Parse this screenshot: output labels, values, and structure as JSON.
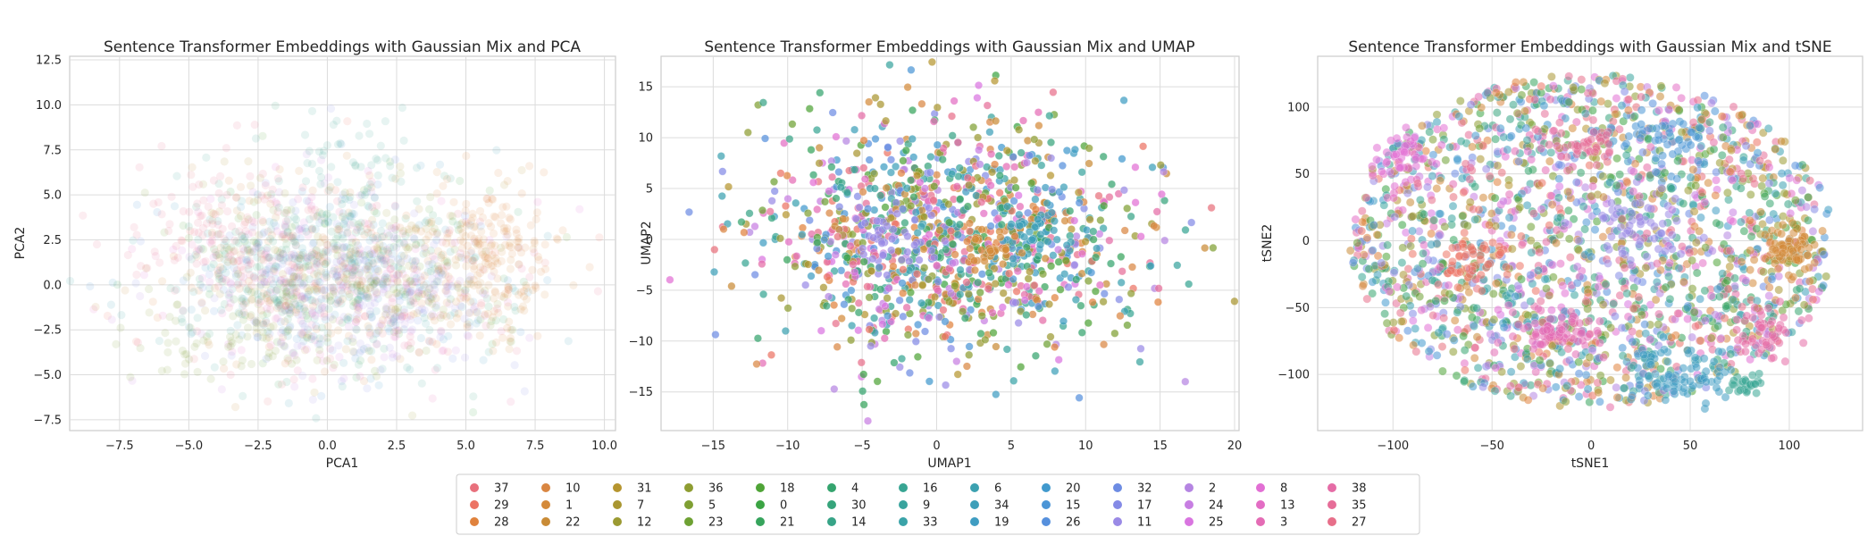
{
  "chart_data": [
    {
      "type": "scatter",
      "title": "Sentence Transformer Embeddings with Gaussian Mix and PCA",
      "xlabel": "PCA1",
      "ylabel": "PCA2",
      "xlim": [
        -9.3,
        10.4
      ],
      "ylim": [
        -8.1,
        12.7
      ],
      "xticks": [
        -7.5,
        -5.0,
        -2.5,
        0.0,
        2.5,
        5.0,
        7.5,
        10.0
      ],
      "yticks": [
        -7.5,
        -5.0,
        -2.5,
        0.0,
        2.5,
        5.0,
        7.5,
        10.0,
        12.5
      ],
      "xtick_labels": [
        "−7.5",
        "−5.0",
        "−2.5",
        "0.0",
        "2.5",
        "5.0",
        "7.5",
        "10.0"
      ],
      "ytick_labels": [
        "−7.5",
        "−5.0",
        "−2.5",
        "0.0",
        "2.5",
        "5.0",
        "7.5",
        "10.0",
        "12.5"
      ],
      "grid": true,
      "point_alpha": 0.12,
      "cloud": {
        "cx": 0.2,
        "cy": 0.6,
        "sx": 3.2,
        "sy": 2.6,
        "count": 1500
      },
      "dense_regions": [
        {
          "cluster": "28",
          "cx": 6.0,
          "cy": 2.0,
          "sx": 1.3,
          "sy": 2.2,
          "count": 110
        },
        {
          "cluster": "1",
          "cx": 5.5,
          "cy": 0.5,
          "sx": 1.2,
          "sy": 1.8,
          "count": 90
        },
        {
          "cluster": "27",
          "cx": -4.0,
          "cy": 3.0,
          "sx": 1.8,
          "sy": 2.0,
          "count": 100
        },
        {
          "cluster": "16",
          "cx": 1.0,
          "cy": 5.5,
          "sx": 1.5,
          "sy": 2.2,
          "count": 70
        },
        {
          "cluster": "11",
          "cx": 2.0,
          "cy": -1.0,
          "sx": 1.8,
          "sy": 1.6,
          "count": 70
        },
        {
          "cluster": "5",
          "cx": -3.0,
          "cy": -3.5,
          "sx": 1.8,
          "sy": 1.0,
          "count": 60
        }
      ]
    },
    {
      "type": "scatter",
      "title": "Sentence Transformer Embeddings with Gaussian Mix and UMAP",
      "xlabel": "UMAP1",
      "ylabel": "UMAP2",
      "xlim": [
        -18.5,
        20.3
      ],
      "ylim": [
        -18.8,
        18.0
      ],
      "xticks": [
        -15,
        -10,
        -5,
        0,
        5,
        10,
        15,
        20
      ],
      "yticks": [
        -15,
        -10,
        -5,
        0,
        5,
        10,
        15
      ],
      "xtick_labels": [
        "−15",
        "−10",
        "−5",
        "0",
        "5",
        "10",
        "15",
        "20"
      ],
      "ytick_labels": [
        "−15",
        "−10",
        "−5",
        "0",
        "5",
        "10",
        "15"
      ],
      "grid": true,
      "point_alpha": 0.72,
      "cloud": {
        "cx": 1.0,
        "cy": 0.0,
        "sx": 6.5,
        "sy": 6.0,
        "count": 1250
      },
      "dense_regions": [
        {
          "cluster": "34",
          "cx": 6.5,
          "cy": 0.5,
          "sx": 1.0,
          "sy": 1.2,
          "count": 40
        },
        {
          "cluster": "11",
          "cx": -3.0,
          "cy": 0.0,
          "sx": 1.5,
          "sy": 1.5,
          "count": 40
        },
        {
          "cluster": "1",
          "cx": 3.5,
          "cy": -1.0,
          "sx": 1.0,
          "sy": 1.0,
          "count": 30
        }
      ]
    },
    {
      "type": "scatter",
      "title": "Sentence Transformer Embeddings with Gaussian Mix and tSNE",
      "xlabel": "tSNE1",
      "ylabel": "tSNE2",
      "xlim": [
        -138,
        137
      ],
      "ylim": [
        -142,
        138
      ],
      "xticks": [
        -100,
        -50,
        0,
        50,
        100
      ],
      "yticks": [
        -100,
        -50,
        0,
        50,
        100
      ],
      "xtick_labels": [
        "−100",
        "−50",
        "0",
        "50",
        "100"
      ],
      "ytick_labels": [
        "−100",
        "−50",
        "0",
        "50",
        "100"
      ],
      "grid": true,
      "point_alpha": 0.55,
      "cloud": {
        "cx": 0,
        "cy": 0,
        "rx": 122,
        "ry": 125,
        "count": 2000
      },
      "dense_regions": [
        {
          "cluster": "1",
          "cx": 100,
          "cy": -8,
          "sx": 9,
          "sy": 9,
          "count": 70
        },
        {
          "cluster": "3",
          "cx": -20,
          "cy": -70,
          "sx": 12,
          "sy": 9,
          "count": 70
        },
        {
          "cluster": "19",
          "cx": 45,
          "cy": -100,
          "sx": 13,
          "sy": 10,
          "count": 80
        },
        {
          "cluster": "38",
          "cx": 88,
          "cy": -68,
          "sx": 8,
          "sy": 10,
          "count": 50
        },
        {
          "cluster": "29",
          "cx": -60,
          "cy": -15,
          "sx": 10,
          "sy": 9,
          "count": 50
        },
        {
          "cluster": "8",
          "cx": -95,
          "cy": 65,
          "sx": 8,
          "sy": 9,
          "count": 40
        },
        {
          "cluster": "11",
          "cx": 20,
          "cy": 10,
          "sx": 12,
          "sy": 12,
          "count": 50
        },
        {
          "cluster": "15",
          "cx": 40,
          "cy": 80,
          "sx": 12,
          "sy": 10,
          "count": 40
        },
        {
          "cluster": "35",
          "cx": -5,
          "cy": 75,
          "sx": 10,
          "sy": 8,
          "count": 40
        },
        {
          "cluster": "16",
          "cx": 78,
          "cy": -108,
          "sx": 5,
          "sy": 4,
          "count": 25
        }
      ]
    }
  ],
  "legend": {
    "columns": [
      [
        "37",
        "29",
        "28"
      ],
      [
        "10",
        "1",
        "22"
      ],
      [
        "31",
        "7",
        "12"
      ],
      [
        "36",
        "5",
        "23"
      ],
      [
        "18",
        "0",
        "21"
      ],
      [
        "4",
        "30",
        "14"
      ],
      [
        "16",
        "9",
        "33"
      ],
      [
        "6",
        "34",
        "19"
      ],
      [
        "20",
        "15",
        "26"
      ],
      [
        "32",
        "17",
        "11"
      ],
      [
        "2",
        "24",
        "25"
      ],
      [
        "8",
        "13",
        "3"
      ],
      [
        "38",
        "35",
        "27"
      ]
    ],
    "colors": {
      "37": "#e8707c",
      "29": "#ec7364",
      "28": "#e0823d",
      "10": "#d98642",
      "1": "#d48a3a",
      "22": "#c98b36",
      "31": "#b6952f",
      "7": "#a99631",
      "12": "#9b9a32",
      "36": "#8e9d32",
      "5": "#7f9f33",
      "23": "#6ea133",
      "18": "#4fa437",
      "0": "#3ba444",
      "21": "#36a45c",
      "4": "#35a46e",
      "30": "#36a47b",
      "14": "#37a487",
      "16": "#38a593",
      "9": "#39a49e",
      "33": "#3aa3a8",
      "6": "#3ba1b0",
      "34": "#3d9fb9",
      "19": "#3f9dc2",
      "20": "#4199cd",
      "15": "#4b95d6",
      "26": "#5690dd",
      "32": "#6d8ce3",
      "17": "#848ae6",
      "11": "#9a8ae6",
      "2": "#b585e2",
      "24": "#c77ee2",
      "25": "#d975e0",
      "8": "#e26fd4",
      "13": "#e36dc4",
      "3": "#e46cb5",
      "38": "#e56ca6",
      "35": "#e66d98",
      "27": "#e76f8a"
    }
  }
}
